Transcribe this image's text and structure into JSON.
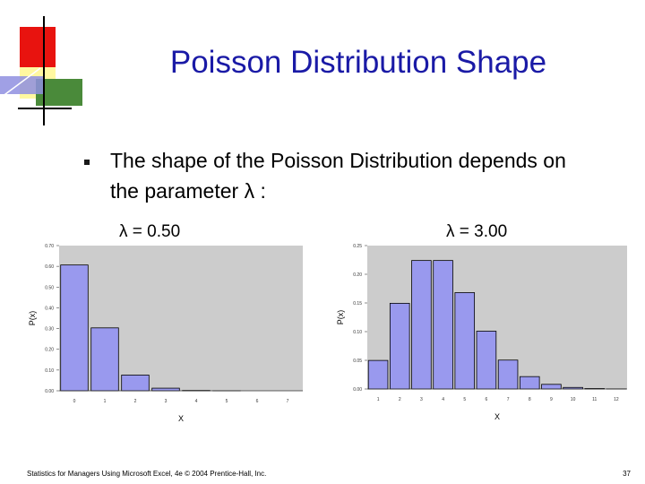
{
  "slide": {
    "title": "Poisson Distribution Shape",
    "bullet": "The shape of the Poisson Distribution depends on the parameter λ :",
    "footer": "Statistics for Managers Using Microsoft Excel, 4e © 2004 Prentice-Hall, Inc.",
    "page_number": "37",
    "title_color": "#1a1aa6"
  },
  "chart_labels": {
    "left": "λ = 0.50",
    "right": "λ = 3.00"
  },
  "chart_data": [
    {
      "type": "bar",
      "categories": [
        "0",
        "1",
        "2",
        "3",
        "4",
        "5",
        "6",
        "7"
      ],
      "values": [
        0.6065,
        0.3033,
        0.0758,
        0.0126,
        0.0016,
        0.0002,
        0.0,
        0.0
      ],
      "xlabel": "X",
      "ylabel": "P(x)",
      "ylim": [
        0,
        0.7
      ],
      "yticks": [
        "0.00",
        "0.10",
        "0.20",
        "0.30",
        "0.40",
        "0.50",
        "0.60",
        "0.70"
      ],
      "grid": false,
      "bar_color": "#9999ee",
      "plot_bg": "#cccccc",
      "legend": "none"
    },
    {
      "type": "bar",
      "categories": [
        "1",
        "2",
        "3",
        "4",
        "5",
        "6",
        "7",
        "8",
        "9",
        "10",
        "11",
        "12"
      ],
      "values": [
        0.0498,
        0.1494,
        0.224,
        0.224,
        0.168,
        0.1008,
        0.0504,
        0.0216,
        0.0081,
        0.0027,
        0.0008,
        0.0002
      ],
      "xlabel": "X",
      "ylabel": "P(x)",
      "ylim": [
        0,
        0.25
      ],
      "yticks": [
        "0.00",
        "0.05",
        "0.10",
        "0.15",
        "0.20",
        "0.25"
      ],
      "grid": false,
      "bar_color": "#9999ee",
      "plot_bg": "#cccccc",
      "legend": "none"
    }
  ]
}
